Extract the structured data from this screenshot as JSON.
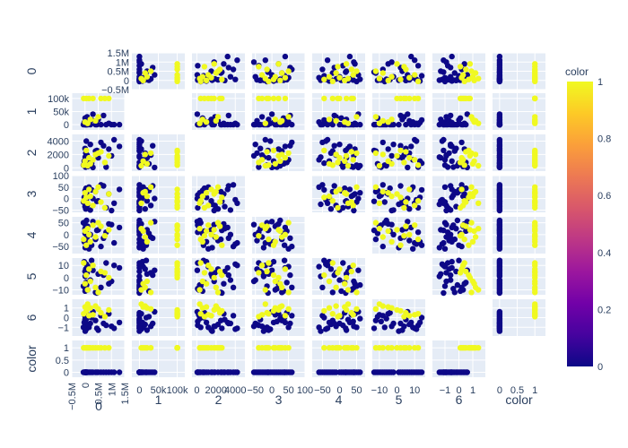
{
  "chart_data": {
    "type": "scatter",
    "chart_kind": "scatter-matrix",
    "title": "",
    "variables": [
      "0",
      "1",
      "2",
      "3",
      "4",
      "5",
      "6",
      "color"
    ],
    "axis_labels": [
      "0",
      "1",
      "2",
      "3",
      "4",
      "5",
      "6",
      "color"
    ],
    "ranges": [
      [
        -500000,
        1500000
      ],
      [
        -20000,
        120000
      ],
      [
        -500,
        5000
      ],
      [
        -60,
        100
      ],
      [
        -80,
        75
      ],
      [
        -14,
        16
      ],
      [
        -1.9,
        1.9
      ],
      [
        -0.2,
        1.3
      ]
    ],
    "y_ticks": [
      {
        "values": [
          -500000,
          0,
          500000,
          1000000,
          1500000
        ],
        "labels": [
          "−0.5M",
          "0",
          "0.5M",
          "1M",
          "1.5M"
        ]
      },
      {
        "values": [
          0,
          50000,
          100000
        ],
        "labels": [
          "0",
          "50k",
          "100k"
        ]
      },
      {
        "values": [
          0,
          2000,
          4000
        ],
        "labels": [
          "0",
          "2000",
          "4000"
        ]
      },
      {
        "values": [
          -50,
          0,
          50,
          100
        ],
        "labels": [
          "−50",
          "0",
          "50",
          "100"
        ]
      },
      {
        "values": [
          -50,
          0,
          50
        ],
        "labels": [
          "−50",
          "0",
          "50"
        ]
      },
      {
        "values": [
          -10,
          0,
          10
        ],
        "labels": [
          "−10",
          "0",
          "10"
        ]
      },
      {
        "values": [
          -1,
          0,
          1
        ],
        "labels": [
          "−1",
          "0",
          "1"
        ]
      },
      {
        "values": [
          0,
          0.5,
          1
        ],
        "labels": [
          "0",
          "0.5",
          "1"
        ]
      }
    ],
    "x_ticks": [
      {
        "values": [
          -500000,
          0,
          500000,
          1000000,
          1500000
        ],
        "labels": [
          "−0.5M",
          "0",
          "0.5M",
          "1M",
          "1.5M"
        ]
      },
      {
        "values": [
          0,
          50000,
          100000
        ],
        "labels": [
          "0",
          "50k",
          "100k"
        ]
      },
      {
        "values": [
          0,
          2000,
          4000
        ],
        "labels": [
          "0",
          "2000",
          "4000"
        ]
      },
      {
        "values": [
          -50,
          0,
          50,
          100
        ],
        "labels": [
          "−50",
          "0",
          "50",
          "100"
        ]
      },
      {
        "values": [
          -50,
          0,
          50
        ],
        "labels": [
          "−50",
          "0",
          "50"
        ]
      },
      {
        "values": [
          -10,
          0,
          10
        ],
        "labels": [
          "−10",
          "0",
          "10"
        ]
      },
      {
        "values": [
          -1,
          0,
          1
        ],
        "labels": [
          "−1",
          "0",
          "1"
        ]
      },
      {
        "values": [
          0,
          0.5,
          1
        ],
        "labels": [
          "0",
          "0.5",
          "1"
        ]
      }
    ],
    "samples": [
      {
        "v": [
          1300000,
          0,
          3200,
          40,
          30,
          8,
          -0.5,
          0
        ]
      },
      {
        "v": [
          1100000,
          0,
          4200,
          -20,
          -35,
          10,
          -1.1,
          0
        ]
      },
      {
        "v": [
          900000,
          5000,
          2800,
          20,
          45,
          -5,
          0.4,
          0
        ]
      },
      {
        "v": [
          800000,
          0,
          100,
          -40,
          10,
          12,
          -0.8,
          0
        ]
      },
      {
        "v": [
          600000,
          0,
          3800,
          60,
          -50,
          -8,
          0.2,
          0
        ]
      },
      {
        "v": [
          500000,
          20000,
          1500,
          -10,
          20,
          3,
          -1.3,
          0
        ]
      },
      {
        "v": [
          400000,
          0,
          2500,
          30,
          -20,
          -12,
          -0.3,
          0
        ]
      },
      {
        "v": [
          300000,
          40000,
          50,
          0,
          55,
          6,
          0.6,
          0
        ]
      },
      {
        "v": [
          200000,
          0,
          3500,
          -50,
          0,
          -2,
          -0.6,
          0
        ]
      },
      {
        "v": [
          150000,
          10000,
          1200,
          50,
          -60,
          9,
          -1.0,
          0
        ]
      },
      {
        "v": [
          100000,
          0,
          200,
          10,
          35,
          -10,
          0.3,
          0
        ]
      },
      {
        "v": [
          80000,
          30000,
          1900,
          -30,
          -10,
          4,
          -0.9,
          0
        ]
      },
      {
        "v": [
          60000,
          0,
          300,
          25,
          60,
          -6,
          -0.1,
          0
        ]
      },
      {
        "v": [
          50000,
          5000,
          4000,
          -5,
          -40,
          11,
          -1.2,
          0
        ]
      },
      {
        "v": [
          40000,
          0,
          800,
          45,
          15,
          -4,
          0.5,
          0
        ]
      },
      {
        "v": [
          30000,
          15000,
          2200,
          -45,
          -25,
          7,
          -0.7,
          0
        ]
      },
      {
        "v": [
          20000,
          0,
          100,
          15,
          40,
          -9,
          -0.4,
          0
        ]
      },
      {
        "v": [
          10000,
          0,
          1600,
          -25,
          -55,
          1,
          -1.4,
          0
        ]
      },
      {
        "v": [
          5000,
          25000,
          600,
          35,
          5,
          -11,
          0.1,
          0
        ]
      },
      {
        "v": [
          0,
          0,
          2900,
          -35,
          25,
          5,
          -0.2,
          0
        ]
      },
      {
        "v": [
          -30000,
          8000,
          1000,
          5,
          -30,
          13,
          -0.5,
          0
        ]
      },
      {
        "v": [
          -60000,
          0,
          400,
          -15,
          50,
          -7,
          -1.0,
          0
        ]
      },
      {
        "v": [
          700000,
          35000,
          3300,
          55,
          -15,
          2,
          -0.6,
          0
        ]
      },
      {
        "v": [
          1000000,
          0,
          1800,
          -55,
          42,
          -3,
          -0.9,
          0
        ]
      },
      {
        "v": [
          250000,
          18000,
          700,
          38,
          -45,
          14,
          0.0,
          0
        ]
      },
      {
        "v": [
          450000,
          0,
          2600,
          -12,
          18,
          -13,
          -1.1,
          0
        ]
      },
      {
        "v": [
          900000,
          100000,
          1800,
          20,
          20,
          0,
          0.8,
          1
        ]
      },
      {
        "v": [
          600000,
          100000,
          2400,
          -15,
          35,
          5,
          0.5,
          1
        ]
      },
      {
        "v": [
          400000,
          15000,
          2000,
          30,
          -10,
          -8,
          1.2,
          1
        ]
      },
      {
        "v": [
          300000,
          100000,
          1200,
          -30,
          40,
          10,
          0.3,
          1
        ]
      },
      {
        "v": [
          200000,
          20000,
          600,
          10,
          -30,
          -3,
          1.0,
          1
        ]
      },
      {
        "v": [
          150000,
          100000,
          1500,
          40,
          0,
          7,
          0.2,
          1
        ]
      },
      {
        "v": [
          100000,
          5000,
          300,
          -20,
          25,
          -10,
          1.4,
          1
        ]
      },
      {
        "v": [
          50000,
          100000,
          2600,
          5,
          -45,
          2,
          0.7,
          1
        ]
      },
      {
        "v": [
          0,
          10000,
          1000,
          25,
          15,
          -5,
          1.1,
          1
        ]
      },
      {
        "v": [
          -50000,
          100000,
          400,
          -10,
          -20,
          12,
          0.4,
          1
        ]
      },
      {
        "v": [
          500000,
          30000,
          2200,
          50,
          50,
          -12,
          0.9,
          1
        ]
      },
      {
        "v": [
          750000,
          100000,
          800,
          -40,
          -5,
          4,
          0.1,
          1
        ]
      }
    ],
    "colorbar": {
      "title": "color",
      "tick_values": [
        0,
        0.2,
        0.4,
        0.6,
        0.8,
        1
      ],
      "tick_labels": [
        "0",
        "0.2",
        "0.4",
        "0.6",
        "0.8",
        "1"
      ],
      "colorscale": [
        "#0d0887",
        "#46039f",
        "#7201a8",
        "#9c179e",
        "#bd3786",
        "#d8576b",
        "#ed7953",
        "#fb9f3a",
        "#fdca26",
        "#f0f921"
      ]
    },
    "colors": {
      "low": "#0d0887",
      "high": "#f0f921",
      "panel_bg": "#e5ecf6",
      "grid": "#ffffff",
      "text": "#2a3f5f"
    }
  }
}
